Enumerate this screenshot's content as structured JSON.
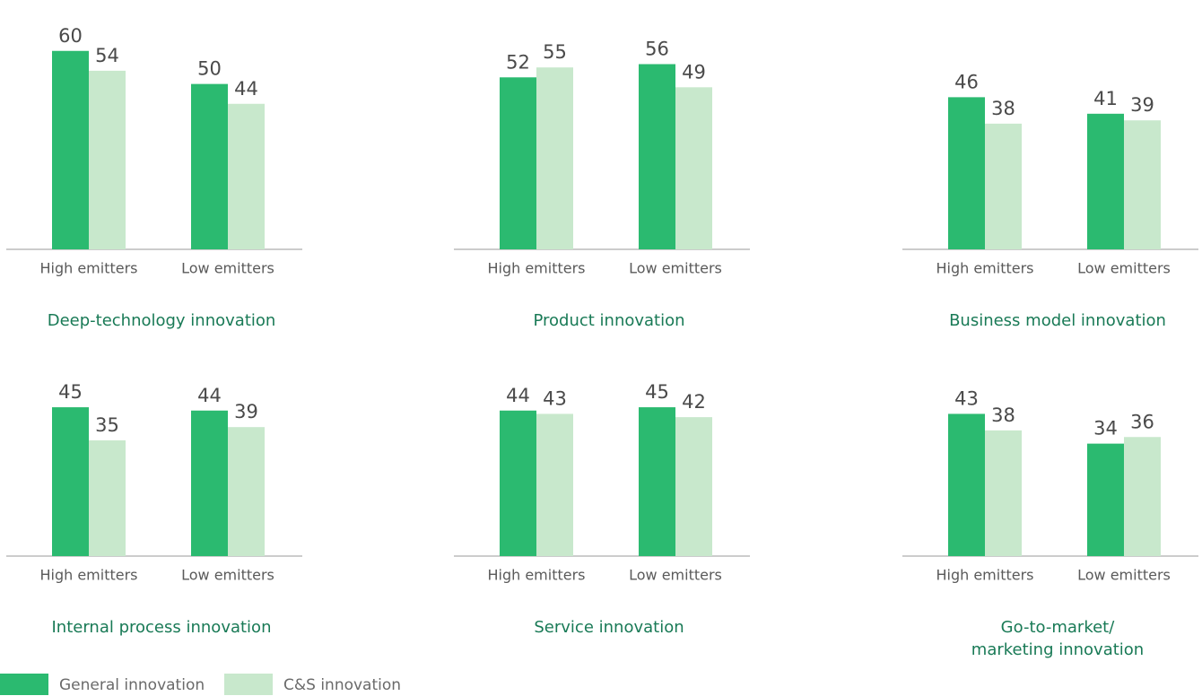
{
  "legend": [
    {
      "name": "General innovation",
      "color": "#2bba70"
    },
    {
      "name": "C&S innovation",
      "color": "#c8e8cc"
    }
  ],
  "chart_data": [
    {
      "type": "bar",
      "title": "Deep-technology innovation",
      "categories": [
        "High emitters",
        "Low emitters"
      ],
      "ylim": [
        0,
        64
      ],
      "series": [
        {
          "values": [
            60,
            50
          ]
        },
        {
          "values": [
            54,
            44
          ]
        }
      ]
    },
    {
      "type": "bar",
      "title": "Product innovation",
      "categories": [
        "High emitters",
        "Low emitters"
      ],
      "ylim": [
        0,
        64
      ],
      "series": [
        {
          "values": [
            52,
            56
          ]
        },
        {
          "values": [
            55,
            49
          ]
        }
      ]
    },
    {
      "type": "bar",
      "title": "Business model innovation",
      "categories": [
        "High emitters",
        "Low emitters"
      ],
      "ylim": [
        0,
        64
      ],
      "series": [
        {
          "values": [
            46,
            41
          ]
        },
        {
          "values": [
            38,
            39
          ]
        }
      ]
    },
    {
      "type": "bar",
      "title": "Internal process innovation",
      "categories": [
        "High emitters",
        "Low emitters"
      ],
      "ylim": [
        0,
        64
      ],
      "series": [
        {
          "values": [
            45,
            44
          ]
        },
        {
          "values": [
            35,
            39
          ]
        }
      ]
    },
    {
      "type": "bar",
      "title": "Service innovation",
      "categories": [
        "High emitters",
        "Low emitters"
      ],
      "ylim": [
        0,
        64
      ],
      "series": [
        {
          "values": [
            44,
            45
          ]
        },
        {
          "values": [
            43,
            42
          ]
        }
      ]
    },
    {
      "type": "bar",
      "title": [
        "Go-to-market/",
        "marketing innovation"
      ],
      "categories": [
        "High emitters",
        "Low emitters"
      ],
      "ylim": [
        0,
        64
      ],
      "series": [
        {
          "values": [
            43,
            34
          ]
        },
        {
          "values": [
            38,
            36
          ]
        }
      ]
    }
  ]
}
